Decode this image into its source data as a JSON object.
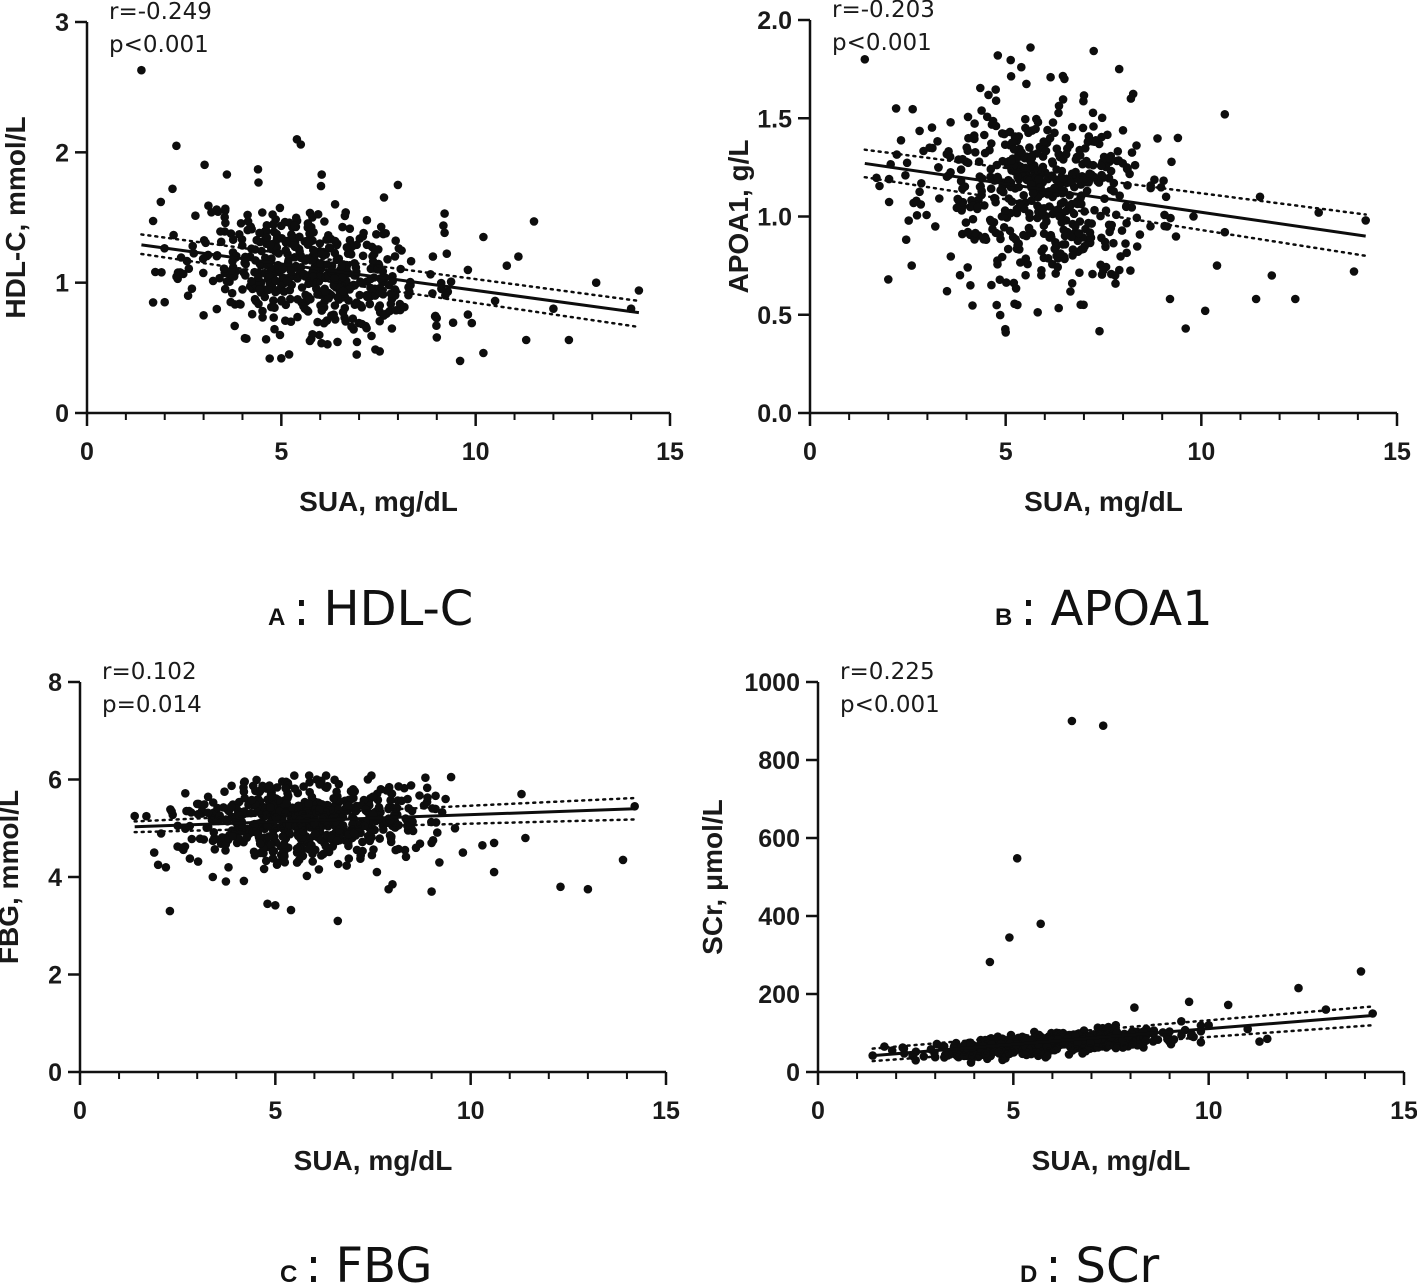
{
  "chart_data": [
    {
      "type": "scatter",
      "panel_letter": "A",
      "caption": "HDL-C",
      "caption_separator": ":",
      "xlabel": "SUA, mg/dL",
      "ylabel": "HDL-C, mmol/L",
      "xlim": [
        0,
        15
      ],
      "ylim": [
        0,
        3
      ],
      "xticks": [
        0,
        5,
        10,
        15
      ],
      "xtick_labels": [
        "0",
        "5",
        "10",
        "15"
      ],
      "yticks": [
        0,
        1,
        2,
        3
      ],
      "ytick_labels": [
        "0",
        "1",
        "2",
        "3"
      ],
      "x_minor_step": 1,
      "stats": [
        "r=-0.249",
        "p<0.001"
      ],
      "fit": {
        "x": [
          1.4,
          14.2
        ],
        "y": [
          1.29,
          0.77
        ],
        "ci_upper": [
          1.37,
          0.86
        ],
        "ci_lower": [
          1.22,
          0.66
        ]
      },
      "cloud": {
        "seed": 11,
        "n": 520,
        "x_center": 5.7,
        "x_sd": 1.5,
        "y_center": 1.1,
        "y_sd": 0.24,
        "y_slope": -0.04
      },
      "points": [
        [
          1.4,
          2.63
        ],
        [
          2.3,
          2.05
        ],
        [
          5.4,
          2.1
        ],
        [
          5.5,
          2.06
        ],
        [
          2.2,
          1.72
        ],
        [
          1.9,
          1.62
        ],
        [
          3.6,
          1.83
        ],
        [
          4.4,
          1.87
        ],
        [
          8.0,
          1.75
        ],
        [
          11.5,
          1.47
        ],
        [
          9.2,
          1.53
        ],
        [
          10.2,
          1.35
        ],
        [
          9.6,
          0.4
        ],
        [
          10.2,
          0.46
        ],
        [
          5.0,
          0.42
        ],
        [
          5.2,
          0.45
        ],
        [
          12.4,
          0.56
        ],
        [
          11.3,
          0.56
        ],
        [
          13.1,
          1.0
        ],
        [
          14.0,
          0.8
        ],
        [
          14.2,
          0.94
        ],
        [
          12.0,
          0.8
        ],
        [
          10.8,
          1.13
        ],
        [
          9.0,
          0.58
        ],
        [
          3.2,
          1.54
        ],
        [
          4.1,
          0.57
        ],
        [
          2.0,
          0.85
        ],
        [
          2.6,
          0.9
        ],
        [
          3.0,
          0.75
        ],
        [
          8.9,
          1.2
        ],
        [
          9.9,
          0.69
        ],
        [
          11.1,
          1.2
        ],
        [
          10.5,
          0.86
        ]
      ]
    },
    {
      "type": "scatter",
      "panel_letter": "B",
      "caption": "APOA1",
      "caption_separator": ":",
      "xlabel": "SUA, mg/dL",
      "ylabel": "APOA1, g/L",
      "xlim": [
        0,
        15
      ],
      "ylim": [
        0,
        2.0
      ],
      "xticks": [
        0,
        5,
        10,
        15
      ],
      "xtick_labels": [
        "0",
        "5",
        "10",
        "15"
      ],
      "yticks": [
        0,
        0.5,
        1.0,
        1.5,
        2.0
      ],
      "ytick_labels": [
        "0.0",
        "0.5",
        "1.0",
        "1.5",
        "2.0"
      ],
      "x_minor_step": 1,
      "stats": [
        "r=-0.203",
        "p<0.001"
      ],
      "fit": {
        "x": [
          1.4,
          14.2
        ],
        "y": [
          1.27,
          0.9
        ],
        "ci_upper": [
          1.34,
          1.01
        ],
        "ci_lower": [
          1.2,
          0.8
        ]
      },
      "cloud": {
        "seed": 23,
        "n": 520,
        "x_center": 5.7,
        "x_sd": 1.45,
        "y_center": 1.12,
        "y_sd": 0.24,
        "y_slope": -0.025
      },
      "points": [
        [
          1.4,
          1.8
        ],
        [
          2.2,
          1.55
        ],
        [
          2.0,
          0.68
        ],
        [
          2.6,
          0.75
        ],
        [
          4.8,
          1.82
        ],
        [
          5.4,
          1.76
        ],
        [
          6.5,
          1.7
        ],
        [
          7.9,
          1.75
        ],
        [
          8.2,
          1.6
        ],
        [
          9.4,
          1.4
        ],
        [
          10.6,
          1.52
        ],
        [
          11.5,
          1.1
        ],
        [
          12.4,
          0.58
        ],
        [
          13.0,
          1.02
        ],
        [
          13.9,
          0.72
        ],
        [
          14.2,
          0.98
        ],
        [
          11.4,
          0.58
        ],
        [
          10.1,
          0.52
        ],
        [
          9.6,
          0.43
        ],
        [
          9.2,
          0.58
        ],
        [
          5.0,
          0.41
        ],
        [
          5.3,
          0.55
        ],
        [
          3.5,
          0.62
        ],
        [
          4.1,
          0.65
        ],
        [
          10.6,
          0.92
        ],
        [
          9.8,
          1.0
        ],
        [
          8.7,
          0.95
        ],
        [
          7.8,
          0.7
        ],
        [
          6.7,
          0.66
        ],
        [
          8.1,
          1.25
        ],
        [
          9.1,
          1.1
        ],
        [
          7.1,
          1.38
        ],
        [
          10.4,
          0.75
        ],
        [
          11.8,
          0.7
        ]
      ]
    },
    {
      "type": "scatter",
      "panel_letter": "C",
      "caption": "FBG",
      "caption_separator": ":",
      "xlabel": "SUA, mg/dL",
      "ylabel": "FBG, mmol/L",
      "xlim": [
        0,
        15
      ],
      "ylim": [
        0,
        8
      ],
      "xticks": [
        0,
        5,
        10,
        15
      ],
      "xtick_labels": [
        "0",
        "5",
        "10",
        "15"
      ],
      "yticks": [
        0,
        2,
        4,
        6,
        8
      ],
      "ytick_labels": [
        "0",
        "2",
        "4",
        "6",
        "8"
      ],
      "x_minor_step": 1,
      "stats": [
        "r=0.102",
        "p=0.014"
      ],
      "fit": {
        "x": [
          1.4,
          14.2
        ],
        "y": [
          5.03,
          5.4
        ],
        "ci_upper": [
          5.14,
          5.62
        ],
        "ci_lower": [
          4.92,
          5.18
        ]
      },
      "cloud": {
        "seed": 37,
        "n": 560,
        "x_center": 5.8,
        "x_sd": 1.45,
        "y_center": 5.2,
        "y_sd": 0.42,
        "y_slope": 0.03,
        "y_max": 6.08
      },
      "points": [
        [
          1.4,
          5.25
        ],
        [
          2.3,
          3.3
        ],
        [
          1.9,
          4.5
        ],
        [
          2.0,
          4.25
        ],
        [
          2.2,
          4.2
        ],
        [
          2.6,
          4.6
        ],
        [
          2.5,
          5.05
        ],
        [
          3.0,
          5.5
        ],
        [
          3.4,
          4.0
        ],
        [
          4.8,
          3.45
        ],
        [
          5.0,
          3.42
        ],
        [
          5.4,
          3.32
        ],
        [
          6.6,
          3.1
        ],
        [
          7.9,
          3.75
        ],
        [
          8.0,
          3.85
        ],
        [
          9.0,
          3.7
        ],
        [
          10.6,
          4.1
        ],
        [
          11.4,
          4.8
        ],
        [
          11.3,
          5.7
        ],
        [
          12.3,
          3.8
        ],
        [
          13.0,
          3.75
        ],
        [
          13.9,
          4.35
        ],
        [
          14.2,
          5.45
        ],
        [
          10.3,
          4.65
        ],
        [
          10.6,
          4.7
        ],
        [
          9.8,
          4.5
        ],
        [
          9.6,
          5.0
        ],
        [
          9.0,
          4.7
        ],
        [
          9.2,
          4.3
        ],
        [
          7.6,
          4.1
        ],
        [
          3.8,
          4.2
        ],
        [
          8.6,
          4.6
        ],
        [
          9.5,
          6.05
        ]
      ]
    },
    {
      "type": "scatter",
      "panel_letter": "D",
      "caption": "SCr",
      "caption_separator": ":",
      "xlabel": "SUA, mg/dL",
      "ylabel": "SCr, μmol/L",
      "xlim": [
        0,
        15
      ],
      "ylim": [
        0,
        1000
      ],
      "xticks": [
        0,
        5,
        10,
        15
      ],
      "xtick_labels": [
        "0",
        "5",
        "10",
        "15"
      ],
      "yticks": [
        0,
        200,
        400,
        600,
        800,
        1000
      ],
      "ytick_labels": [
        "0",
        "200",
        "400",
        "600",
        "800",
        "1000"
      ],
      "x_minor_step": 1,
      "stats": [
        "r=0.225",
        "p<0.001"
      ],
      "fit": {
        "x": [
          1.4,
          14.2
        ],
        "y": [
          42,
          145
        ],
        "ci_upper": [
          60,
          168
        ],
        "ci_lower": [
          28,
          120
        ]
      },
      "cloud": {
        "seed": 51,
        "n": 560,
        "x_center": 6.0,
        "x_sd": 1.5,
        "y_center": 72,
        "y_sd": 13,
        "y_slope": 7.5
      },
      "points": [
        [
          6.5,
          900
        ],
        [
          7.3,
          888
        ],
        [
          5.1,
          548
        ],
        [
          5.7,
          380
        ],
        [
          4.9,
          345
        ],
        [
          4.4,
          282
        ],
        [
          12.3,
          215
        ],
        [
          13.9,
          258
        ],
        [
          13.0,
          160
        ],
        [
          10.5,
          172
        ],
        [
          9.5,
          180
        ],
        [
          11.5,
          85
        ],
        [
          14.2,
          150
        ],
        [
          1.4,
          42
        ],
        [
          1.9,
          55
        ],
        [
          2.2,
          60
        ],
        [
          2.5,
          30
        ],
        [
          3.0,
          38
        ],
        [
          8.1,
          165
        ],
        [
          10.0,
          120
        ],
        [
          11.0,
          110
        ],
        [
          11.3,
          78
        ],
        [
          9.3,
          130
        ]
      ]
    }
  ]
}
